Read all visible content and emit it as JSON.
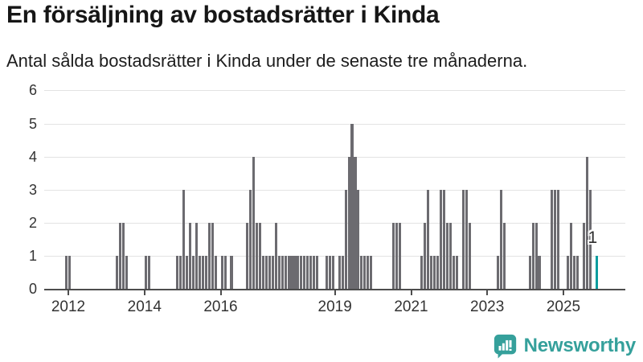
{
  "header": {
    "title": "En försäljning av bostadsrätter i Kinda",
    "subtitle": "Antal sålda bostadsrätter i Kinda under de senaste tre månaderna."
  },
  "chart_data": {
    "type": "bar",
    "title": "En försäljning av bostadsrätter i Kinda",
    "subtitle": "Antal sålda bostadsrätter i Kinda under de senaste tre månaderna.",
    "grid": "horizontal",
    "legend": null,
    "y_axis": {
      "ticks": [
        0,
        1,
        2,
        3,
        4,
        5,
        6
      ],
      "min": 0,
      "max": 6
    },
    "x_axis": {
      "ticks": [
        {
          "label": "2012",
          "month": "2012-01"
        },
        {
          "label": "2014",
          "month": "2014-01"
        },
        {
          "label": "2016",
          "month": "2016-01"
        },
        {
          "label": "2019",
          "month": "2019-01"
        },
        {
          "label": "2021",
          "month": "2021-01"
        },
        {
          "label": "2023",
          "month": "2023-01"
        },
        {
          "label": "2025",
          "month": "2025-01"
        }
      ]
    },
    "series_monthly": {
      "2011": [
        0,
        0,
        0,
        0,
        0,
        0,
        0,
        0,
        0,
        0,
        0,
        1
      ],
      "2012": [
        1,
        0,
        0,
        0,
        0,
        0,
        0,
        0,
        0,
        0,
        0,
        0
      ],
      "2013": [
        0,
        0,
        0,
        1,
        2,
        2,
        1,
        0,
        0,
        0,
        0,
        0
      ],
      "2014": [
        1,
        1,
        0,
        0,
        0,
        0,
        0,
        0,
        0,
        0,
        1,
        1
      ],
      "2015": [
        3,
        1,
        2,
        1,
        2,
        1,
        1,
        1,
        2,
        2,
        1,
        0
      ],
      "2016": [
        1,
        1,
        0,
        1,
        0,
        0,
        0,
        0,
        2,
        3,
        4,
        2
      ],
      "2017": [
        2,
        1,
        1,
        1,
        1,
        2,
        1,
        1,
        1,
        1,
        1,
        1
      ],
      "2018": [
        1,
        1,
        1,
        1,
        1,
        1,
        1,
        0,
        0,
        1,
        1,
        1
      ],
      "2019": [
        0,
        1,
        1,
        3,
        4,
        5,
        4,
        3,
        1,
        1,
        1,
        1
      ],
      "2020": [
        0,
        0,
        0,
        0,
        0,
        0,
        2,
        2,
        2,
        0,
        0,
        0
      ],
      "2021": [
        0,
        0,
        0,
        1,
        2,
        3,
        1,
        1,
        1,
        3,
        3,
        2
      ],
      "2022": [
        2,
        1,
        1,
        0,
        3,
        3,
        2,
        0,
        0,
        0,
        0,
        0
      ],
      "2023": [
        0,
        0,
        0,
        1,
        3,
        2,
        0,
        0,
        0,
        0,
        0,
        0
      ],
      "2024": [
        0,
        1,
        2,
        2,
        1,
        0,
        0,
        0,
        3,
        3,
        3,
        0
      ],
      "2025": [
        0,
        1,
        2,
        1,
        1,
        0,
        2,
        4,
        3,
        0,
        1
      ]
    },
    "highlight": {
      "month": "2025-11",
      "value": 1,
      "label": "1"
    },
    "colors": {
      "bar": "#6c6b70",
      "highlight": "#0a9d9f",
      "gridline": "#e3e3e3",
      "axis": "#4d4d4d",
      "tick_text": "#333333",
      "title_text": "#161616"
    }
  },
  "branding": {
    "logo_text": "Newsworthy",
    "logo_color": "#35a09b",
    "logo_icon": "bar-chart-speech-bubble-icon"
  }
}
